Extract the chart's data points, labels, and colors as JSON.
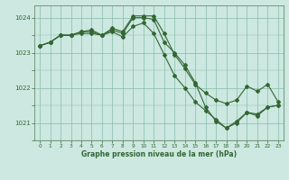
{
  "title": "Graphe pression niveau de la mer (hPa)",
  "background_color": "#cce8e0",
  "grid_color": "#88bbaa",
  "line_color": "#336633",
  "xlim": [
    -0.5,
    23.5
  ],
  "ylim": [
    1020.5,
    1024.35
  ],
  "yticks": [
    1021,
    1022,
    1023,
    1024
  ],
  "xticks": [
    0,
    1,
    2,
    3,
    4,
    5,
    6,
    7,
    8,
    9,
    10,
    11,
    12,
    13,
    14,
    15,
    16,
    17,
    18,
    19,
    20,
    21,
    22,
    23
  ],
  "series1_x": [
    0,
    1,
    2,
    3,
    4,
    5,
    6,
    7,
    8,
    9,
    10,
    11,
    12,
    13,
    14,
    15,
    16,
    17,
    18,
    19,
    20,
    21,
    22,
    23
  ],
  "series1_y": [
    1023.2,
    1023.3,
    1023.5,
    1023.5,
    1023.6,
    1023.6,
    1023.5,
    1023.65,
    1023.55,
    1024.0,
    1024.0,
    1023.95,
    1023.3,
    1023.0,
    1022.65,
    1022.15,
    1021.45,
    1021.05,
    1020.85,
    1021.0,
    1021.3,
    1021.25,
    1021.45,
    1021.5
  ],
  "series2_x": [
    0,
    1,
    2,
    3,
    4,
    5,
    6,
    7,
    8,
    9,
    10,
    11,
    12,
    13,
    14,
    15,
    16,
    17,
    18,
    19,
    20,
    21,
    22,
    23
  ],
  "series2_y": [
    1023.2,
    1023.3,
    1023.5,
    1023.5,
    1023.6,
    1023.65,
    1023.5,
    1023.7,
    1023.6,
    1024.05,
    1024.05,
    1024.05,
    1023.55,
    1022.95,
    1022.55,
    1022.1,
    1021.85,
    1021.65,
    1021.55,
    1021.65,
    1022.05,
    1021.9,
    1022.1,
    1021.6
  ],
  "series3_x": [
    0,
    1,
    2,
    3,
    4,
    5,
    6,
    7,
    8,
    9,
    10,
    11,
    12,
    13,
    14,
    15,
    16,
    17,
    18,
    19,
    20,
    21,
    22,
    23
  ],
  "series3_y": [
    1023.2,
    1023.3,
    1023.5,
    1023.5,
    1023.55,
    1023.55,
    1023.5,
    1023.6,
    1023.45,
    1023.75,
    1023.85,
    1023.55,
    1022.95,
    1022.35,
    1022.0,
    1021.6,
    1021.35,
    1021.1,
    1020.85,
    1021.05,
    1021.3,
    1021.2,
    1021.45,
    1021.5
  ]
}
